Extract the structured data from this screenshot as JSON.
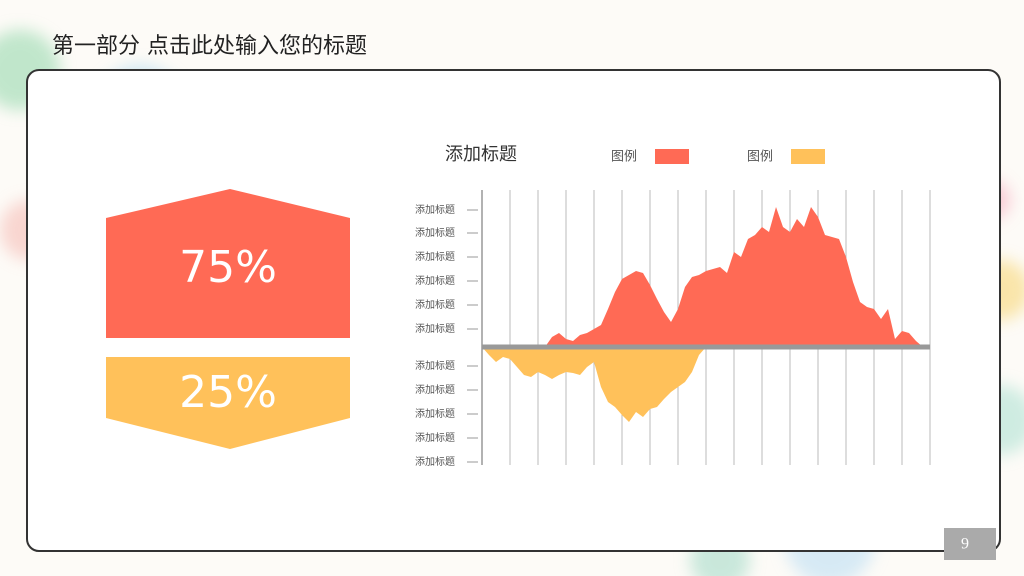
{
  "header": {
    "title": "第一部分  点击此处输入您的标题"
  },
  "panels": [
    {
      "text": "75%"
    },
    {
      "text": "25%"
    }
  ],
  "page_number": "9",
  "chart_data": {
    "type": "area",
    "title": "添加标题",
    "x": [
      0,
      0.25,
      0.5,
      0.75,
      1,
      1.25,
      1.5,
      1.75,
      2,
      2.25,
      2.5,
      2.75,
      3,
      3.25,
      3.5,
      3.75,
      4,
      4.25,
      4.5,
      4.75,
      5,
      5.25,
      5.5,
      5.75,
      6,
      6.25,
      6.5,
      6.75,
      7,
      7.25,
      7.5,
      7.75,
      8,
      8.25,
      8.5,
      8.75,
      9,
      9.25,
      9.5,
      9.75,
      10,
      10.25,
      10.5,
      10.75,
      11,
      11.25,
      11.5,
      11.75,
      12,
      12.25,
      12.5,
      12.75,
      13,
      13.25,
      13.5,
      13.75,
      14,
      14.25,
      14.5,
      14.75,
      15,
      15.25,
      15.5,
      15.75,
      16
    ],
    "series": [
      {
        "name": "图例",
        "color": "#ff6a55",
        "values": [
          0,
          0,
          0,
          0,
          0,
          0,
          0,
          0,
          0,
          0,
          10,
          14,
          8,
          6,
          12,
          14,
          18,
          22,
          38,
          55,
          68,
          72,
          76,
          74,
          62,
          48,
          35,
          25,
          38,
          60,
          70,
          72,
          76,
          78,
          80,
          74,
          95,
          90,
          108,
          112,
          120,
          115,
          140,
          120,
          115,
          128,
          120,
          140,
          130,
          112,
          110,
          108,
          90,
          65,
          45,
          40,
          38,
          28,
          38,
          8,
          16,
          14,
          6,
          0,
          0
        ]
      },
      {
        "name": "图例",
        "color": "#ffc15a",
        "values": [
          0,
          -8,
          -15,
          -10,
          -12,
          -20,
          -28,
          -30,
          -25,
          -28,
          -32,
          -28,
          -25,
          -26,
          -28,
          -20,
          -15,
          -40,
          -55,
          -60,
          -68,
          -75,
          -65,
          -70,
          -62,
          -60,
          -52,
          -45,
          -40,
          -35,
          -25,
          -8,
          0,
          0,
          0,
          0,
          0,
          0,
          0,
          0,
          0,
          0,
          0,
          0,
          0,
          0,
          0,
          0,
          0,
          0,
          0,
          0,
          0,
          0,
          0,
          0,
          0,
          0,
          0,
          0,
          0,
          0,
          0,
          0,
          0
        ]
      }
    ],
    "xlim": [
      0,
      16
    ],
    "xticks": [
      0,
      1,
      2,
      3,
      4,
      5,
      6,
      7,
      8,
      9,
      10,
      11,
      12,
      13,
      14,
      15,
      16
    ],
    "ylim": [
      -118,
      157
    ],
    "yticks": [
      {
        "value": 137,
        "label": "添加标题"
      },
      {
        "value": 114,
        "label": "添加标题"
      },
      {
        "value": 90,
        "label": "添加标题"
      },
      {
        "value": 66,
        "label": "添加标题"
      },
      {
        "value": 42,
        "label": "添加标题"
      },
      {
        "value": 18,
        "label": "添加标题"
      },
      {
        "value": -19,
        "label": "添加标题"
      },
      {
        "value": -43,
        "label": "添加标题"
      },
      {
        "value": -67,
        "label": "添加标题"
      },
      {
        "value": -91,
        "label": "添加标题"
      },
      {
        "value": -115,
        "label": "添加标题"
      }
    ],
    "grid": true
  }
}
